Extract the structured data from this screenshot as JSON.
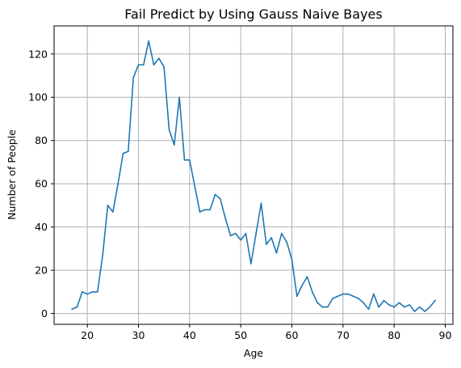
{
  "chart_data": {
    "type": "line",
    "title": "Fail Predict by Using Gauss Naive Bayes",
    "xlabel": "Age",
    "ylabel": "Number of People",
    "xlim": [
      13.5,
      91.5
    ],
    "ylim": [
      -5,
      133
    ],
    "xticks": [
      20,
      30,
      40,
      50,
      60,
      70,
      80,
      90
    ],
    "yticks": [
      0,
      20,
      40,
      60,
      80,
      100,
      120
    ],
    "grid": true,
    "series": [
      {
        "color": "#1f77b4",
        "x": [
          17,
          18,
          19,
          20,
          21,
          22,
          23,
          24,
          25,
          26,
          27,
          28,
          29,
          30,
          31,
          32,
          33,
          34,
          35,
          36,
          37,
          38,
          39,
          40,
          41,
          42,
          43,
          44,
          45,
          46,
          47,
          48,
          49,
          50,
          51,
          52,
          53,
          54,
          55,
          56,
          57,
          58,
          59,
          60,
          61,
          62,
          63,
          64,
          65,
          66,
          67,
          68,
          69,
          70,
          71,
          72,
          73,
          74,
          75,
          76,
          77,
          78,
          79,
          80,
          81,
          82,
          83,
          84,
          85,
          86,
          87,
          88
        ],
        "y": [
          2,
          3,
          10,
          9,
          10,
          10,
          27,
          50,
          47,
          60,
          74,
          75,
          109,
          115,
          115,
          126,
          115,
          118,
          114,
          85,
          78,
          100,
          71,
          71,
          59,
          47,
          48,
          48,
          55,
          53,
          44,
          36,
          37,
          34,
          37,
          23,
          37,
          51,
          32,
          35,
          28,
          37,
          33,
          25,
          8,
          13,
          17,
          10,
          5,
          3,
          3,
          7,
          8,
          9,
          9,
          8,
          7,
          5,
          2,
          9,
          3,
          6,
          4,
          3,
          5,
          3,
          4,
          1,
          3,
          1,
          3,
          6
        ]
      }
    ]
  }
}
